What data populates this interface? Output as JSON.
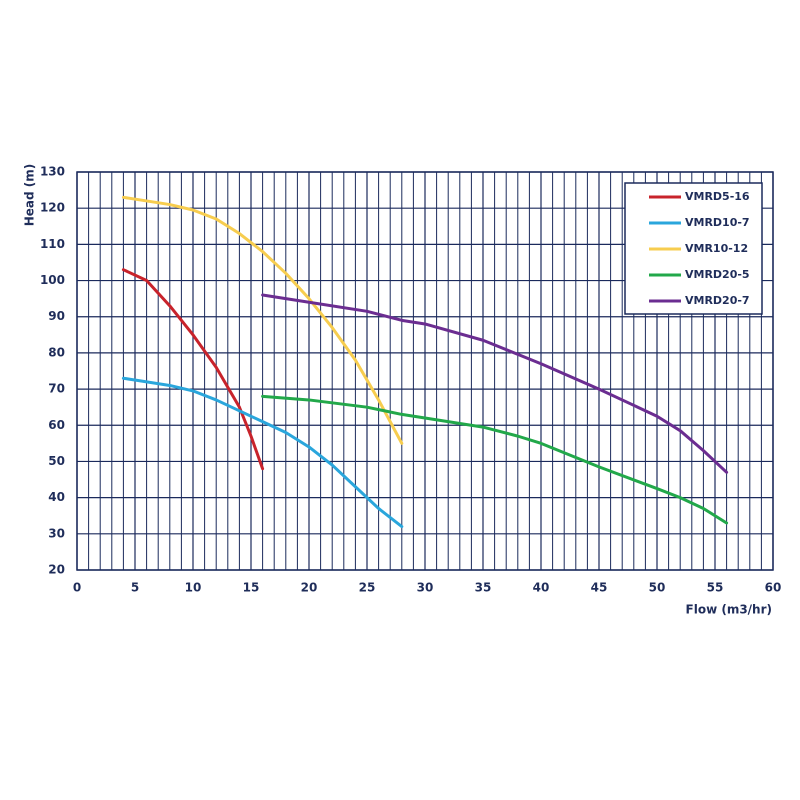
{
  "chart_data": {
    "type": "line",
    "xlabel": "Flow (m3/hr)",
    "ylabel": "Head (m)",
    "xlim": [
      0,
      60
    ],
    "ylim": [
      20,
      130
    ],
    "xticks": [
      0,
      5,
      10,
      15,
      20,
      25,
      30,
      35,
      40,
      45,
      50,
      55,
      60
    ],
    "yticks": [
      20,
      30,
      40,
      50,
      60,
      70,
      80,
      90,
      100,
      110,
      120,
      130
    ],
    "xgrid_minor": [
      1,
      2,
      3,
      4,
      6,
      7,
      8,
      9,
      11,
      12,
      13,
      14,
      16,
      17,
      18,
      19,
      21,
      22,
      23,
      24,
      26,
      27,
      28,
      29,
      31,
      32,
      33,
      34,
      36,
      37,
      38,
      39,
      41,
      42,
      43,
      44,
      46,
      47,
      48,
      49,
      51,
      52,
      53,
      54,
      56,
      57,
      58,
      59
    ],
    "grid": true,
    "grid_color": "#1b2a5c",
    "legend": "upper-right",
    "series": [
      {
        "name": "VMRD5-16",
        "color": "#c8232b",
        "x": [
          4,
          6,
          8,
          10,
          12,
          14,
          15,
          16
        ],
        "values": [
          103,
          100,
          93,
          85,
          76,
          65,
          57,
          48
        ]
      },
      {
        "name": "VMRD10-7",
        "color": "#2aa6dc",
        "x": [
          4,
          8,
          10,
          12,
          14,
          16,
          18,
          20,
          22,
          24,
          26,
          28
        ],
        "values": [
          73,
          71,
          69.5,
          67,
          64,
          61,
          58,
          54,
          49,
          43,
          37,
          32
        ]
      },
      {
        "name": "VMR10-12",
        "color": "#f7cd4f",
        "x": [
          4,
          6,
          8,
          10,
          12,
          14,
          16,
          18,
          20,
          22,
          24,
          26,
          28
        ],
        "values": [
          123,
          122,
          121,
          119.5,
          117,
          113,
          108,
          102,
          95,
          87,
          78,
          67,
          55
        ]
      },
      {
        "name": "VMRD20-5",
        "color": "#22a84a",
        "x": [
          16,
          20,
          25,
          28,
          30,
          35,
          38,
          40,
          45,
          50,
          52,
          54,
          56
        ],
        "values": [
          68,
          67,
          65,
          63,
          62,
          59.5,
          57,
          55,
          48.5,
          42.5,
          40,
          37,
          33
        ]
      },
      {
        "name": "VMRD20-7",
        "color": "#6b2d91",
        "x": [
          16,
          20,
          25,
          28,
          30,
          35,
          40,
          45,
          50,
          52,
          54,
          56
        ],
        "values": [
          96,
          94,
          91.5,
          89,
          88,
          83.5,
          77,
          70,
          62.5,
          58.5,
          53,
          47
        ]
      }
    ]
  }
}
